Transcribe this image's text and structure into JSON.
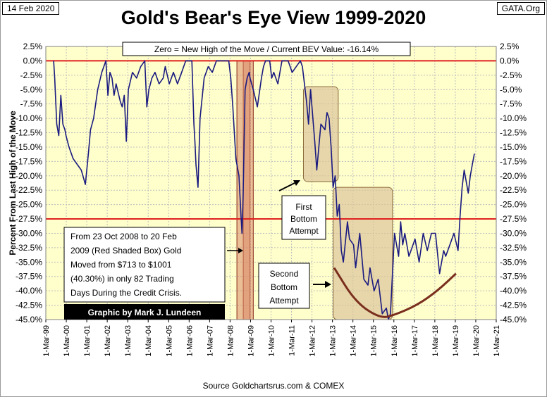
{
  "header": {
    "date": "14 Feb 2020",
    "source_tag": "GATA.Org",
    "footer": "Source Goldchartsrus.com & COMEX"
  },
  "colors": {
    "plot_bg": "#ffffcc",
    "grid": "#bdbdbd",
    "series": "#1a1a80",
    "red_line": "#e02020",
    "red_box": "#d98a6a",
    "tan_box": "#dcc49a",
    "curve": "#7a2e1e"
  },
  "annotations": {
    "current_value": "Zero = New High of the Move / Current BEV Value:  -16.14%",
    "credit_crisis_lines": [
      "From 23 Oct 2008 to 20 Feb",
      "2009 (Red Shaded Box)  Gold",
      "Moved from $713 to $1001",
      "(40.30%) in only 82 Trading",
      "Days During the Credit Crisis."
    ],
    "credit": "Graphic by Mark J. Lundeen",
    "first_bottom": [
      "First",
      "Bottom",
      "Attempt"
    ],
    "second_bottom": [
      "Second",
      "Bottom",
      "Attempt"
    ]
  },
  "chart_data": {
    "type": "line",
    "title": "Gold's Bear's Eye View 1999-2020",
    "ylabel": "Percent  From Last High of the Move",
    "xlabel": "",
    "ylim": [
      -45,
      2.5
    ],
    "xlim": [
      1999.167,
      2021.167
    ],
    "y_ticks": [
      "2.5%",
      "0.0%",
      "-2.5%",
      "-5.0%",
      "-7.5%",
      "-10.0%",
      "-12.5%",
      "-15.0%",
      "-17.5%",
      "-20.0%",
      "-22.5%",
      "-25.0%",
      "-27.5%",
      "-30.0%",
      "-32.5%",
      "-35.0%",
      "-37.5%",
      "-40.0%",
      "-42.5%",
      "-45.0%"
    ],
    "x_ticks": [
      "1-Mar-99",
      "1-Mar-00",
      "1-Mar-01",
      "1-Mar-02",
      "1-Mar-03",
      "1-Mar-04",
      "1-Mar-05",
      "1-Mar-06",
      "1-Mar-07",
      "1-Mar-08",
      "1-Mar-09",
      "1-Mar-10",
      "1-Mar-11",
      "1-Mar-12",
      "1-Mar-13",
      "1-Mar-14",
      "1-Mar-15",
      "1-Mar-16",
      "1-Mar-17",
      "1-Mar-18",
      "1-Mar-19",
      "1-Mar-20",
      "1-Mar-21"
    ],
    "reference_lines": [
      0,
      -27.5
    ],
    "current_bev": -16.14,
    "series": [
      {
        "name": "Gold BEV",
        "x": [
          1999.55,
          1999.6,
          1999.7,
          1999.8,
          1999.9,
          2000.0,
          2000.1,
          2000.15,
          2000.3,
          2000.5,
          2000.7,
          2000.9,
          2001.1,
          2001.25,
          2001.35,
          2001.5,
          2001.7,
          2001.9,
          2002.1,
          2002.2,
          2002.3,
          2002.4,
          2002.5,
          2002.6,
          2002.8,
          2002.9,
          2003.0,
          2003.1,
          2003.2,
          2003.4,
          2003.6,
          2003.8,
          2004.0,
          2004.1,
          2004.2,
          2004.35,
          2004.5,
          2004.7,
          2004.9,
          2005.0,
          2005.2,
          2005.4,
          2005.6,
          2005.8,
          2006.0,
          2006.3,
          2006.4,
          2006.45,
          2006.5,
          2006.6,
          2006.7,
          2006.9,
          2007.1,
          2007.3,
          2007.5,
          2007.7,
          2007.9,
          2008.1,
          2008.2,
          2008.3,
          2008.45,
          2008.6,
          2008.7,
          2008.75,
          2008.8,
          2008.85,
          2008.9,
          2009.0,
          2009.1,
          2009.14,
          2009.3,
          2009.5,
          2009.7,
          2009.8,
          2009.9,
          2010.1,
          2010.2,
          2010.3,
          2010.5,
          2010.7,
          2010.9,
          2011.0,
          2011.2,
          2011.4,
          2011.6,
          2011.7,
          2011.8,
          2011.9,
          2012.0,
          2012.1,
          2012.3,
          2012.4,
          2012.6,
          2012.8,
          2012.9,
          2013.0,
          2013.1,
          2013.2,
          2013.3,
          2013.4,
          2013.5,
          2013.6,
          2013.7,
          2013.9,
          2014.0,
          2014.2,
          2014.3,
          2014.5,
          2014.7,
          2014.9,
          2015.0,
          2015.2,
          2015.4,
          2015.6,
          2015.8,
          2015.9,
          2016.0,
          2016.2,
          2016.4,
          2016.5,
          2016.6,
          2016.7,
          2016.9,
          2017.0,
          2017.2,
          2017.4,
          2017.6,
          2017.8,
          2018.0,
          2018.2,
          2018.4,
          2018.6,
          2018.7,
          2018.9,
          2019.1,
          2019.3,
          2019.4,
          2019.5,
          2019.6,
          2019.7,
          2019.8,
          2019.9,
          2020.0,
          2020.1
        ],
        "values": [
          0,
          -3,
          -11,
          -13,
          -6,
          -11,
          -12,
          -13,
          -15,
          -17,
          -18,
          -19,
          -21.5,
          -16,
          -12,
          -10,
          -5,
          -2,
          0,
          -6,
          -2,
          -3,
          -6,
          -4,
          -7,
          -8,
          -6,
          -14,
          -5,
          -2,
          -3,
          -1,
          0,
          -8,
          -5,
          -3,
          -2,
          -4,
          -3,
          -1,
          -4,
          -2,
          -4,
          -2,
          0,
          0,
          -11,
          -14,
          -18,
          -22,
          -10,
          -3,
          -1,
          -2,
          0,
          0,
          0,
          0,
          -3,
          -8,
          -17,
          -20,
          -27,
          -30,
          -24,
          -15,
          -5,
          -3,
          -2,
          -3,
          -5,
          -8,
          -3,
          -1,
          0,
          0,
          -3,
          -2,
          -4,
          0,
          0,
          0,
          -2,
          -1,
          0,
          -1,
          -4,
          -7,
          -11,
          -5,
          -14,
          -19,
          -11,
          -12,
          -9,
          -10,
          -15,
          -22,
          -20,
          -27,
          -25,
          -33,
          -35,
          -28,
          -31,
          -32,
          -36,
          -30,
          -38,
          -39,
          -36,
          -40,
          -38,
          -44,
          -43,
          -45,
          -44,
          -30,
          -34,
          -28,
          -32,
          -30,
          -34,
          -33,
          -31,
          -35,
          -30,
          -33,
          -30,
          -30,
          -37,
          -33,
          -34,
          -32,
          -30,
          -33,
          -27,
          -22,
          -19,
          -21,
          -23,
          -20,
          -18,
          -16.14
        ]
      }
    ],
    "shaded_regions": [
      {
        "name": "Red Shaded Box",
        "x": [
          2008.81,
          2009.14
        ],
        "y": [
          -45,
          0
        ]
      },
      {
        "name": "Credit crisis box",
        "x": [
          2008.5,
          2009.3
        ],
        "y": [
          -45,
          0
        ]
      },
      {
        "name": "First Bottom Attempt",
        "x": [
          2011.75,
          2013.45
        ],
        "y": [
          -21,
          -4.5
        ]
      },
      {
        "name": "Second Bottom Attempt",
        "x": [
          2013.2,
          2016.1
        ],
        "y": [
          -45,
          -22
        ]
      }
    ],
    "bottom_curve": {
      "x": [
        2013.25,
        2014.3,
        2015.5,
        2016.2,
        2017.3,
        2018.3,
        2019.2
      ],
      "y": [
        -36,
        -42,
        -44.8,
        -44.2,
        -42.5,
        -40,
        -37
      ]
    }
  }
}
